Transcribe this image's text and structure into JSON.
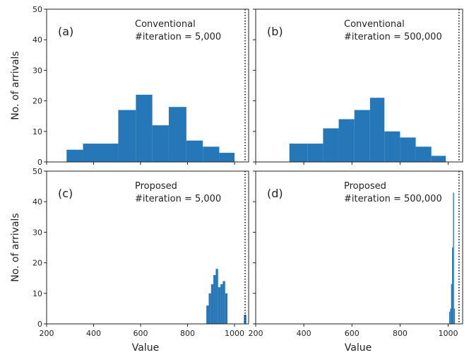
{
  "figure": {
    "ylabel": "No. of arrivals",
    "xlabel": "Value",
    "bar_color": "#2677b8",
    "reference_line": {
      "x": 1045,
      "style": "dotted",
      "color": "#111111"
    }
  },
  "chart_data": [
    {
      "type": "bar",
      "panel": "(a)",
      "annotation": [
        "Conventional",
        "#iteration = 5,000"
      ],
      "xlim": [
        200,
        1060
      ],
      "ylim": [
        0,
        50
      ],
      "xticks": [
        "200",
        "400",
        "600",
        "800",
        "1000"
      ],
      "yticks": [
        "0",
        "10",
        "20",
        "30",
        "40",
        "50"
      ],
      "ylabel": "No. of arrivals",
      "bins": [
        {
          "x0": 285,
          "x1": 355,
          "y": 4
        },
        {
          "x0": 355,
          "x1": 430,
          "y": 6
        },
        {
          "x0": 430,
          "x1": 505,
          "y": 6
        },
        {
          "x0": 505,
          "x1": 580,
          "y": 17
        },
        {
          "x0": 580,
          "x1": 650,
          "y": 22
        },
        {
          "x0": 650,
          "x1": 720,
          "y": 12
        },
        {
          "x0": 720,
          "x1": 795,
          "y": 18
        },
        {
          "x0": 795,
          "x1": 865,
          "y": 7
        },
        {
          "x0": 865,
          "x1": 935,
          "y": 5
        },
        {
          "x0": 935,
          "x1": 1000,
          "y": 3
        }
      ]
    },
    {
      "type": "bar",
      "panel": "(b)",
      "annotation": [
        "Conventional",
        "#iteration = 500,000"
      ],
      "xlim": [
        200,
        1060
      ],
      "ylim": [
        0,
        50
      ],
      "xticks": [
        "200",
        "400",
        "600",
        "800",
        "1000"
      ],
      "yticks": [],
      "bins": [
        {
          "x0": 340,
          "x1": 415,
          "y": 6
        },
        {
          "x0": 415,
          "x1": 480,
          "y": 6
        },
        {
          "x0": 480,
          "x1": 545,
          "y": 11
        },
        {
          "x0": 545,
          "x1": 610,
          "y": 14
        },
        {
          "x0": 610,
          "x1": 675,
          "y": 17
        },
        {
          "x0": 675,
          "x1": 735,
          "y": 21
        },
        {
          "x0": 735,
          "x1": 800,
          "y": 10
        },
        {
          "x0": 800,
          "x1": 865,
          "y": 8
        },
        {
          "x0": 865,
          "x1": 930,
          "y": 5
        },
        {
          "x0": 930,
          "x1": 990,
          "y": 2
        }
      ]
    },
    {
      "type": "bar",
      "panel": "(c)",
      "annotation": [
        "Proposed",
        "#iteration = 5,000"
      ],
      "xlim": [
        200,
        1060
      ],
      "ylim": [
        0,
        50
      ],
      "xticks": [
        "200",
        "400",
        "600",
        "800",
        "1000"
      ],
      "yticks": [
        "0",
        "10",
        "20",
        "30",
        "40",
        "50"
      ],
      "ylabel": "No. of arrivals",
      "xlabel": "Value",
      "bins": [
        {
          "x0": 880,
          "x1": 890,
          "y": 6
        },
        {
          "x0": 890,
          "x1": 900,
          "y": 10
        },
        {
          "x0": 900,
          "x1": 910,
          "y": 13
        },
        {
          "x0": 910,
          "x1": 920,
          "y": 16
        },
        {
          "x0": 920,
          "x1": 930,
          "y": 18
        },
        {
          "x0": 930,
          "x1": 940,
          "y": 12
        },
        {
          "x0": 940,
          "x1": 950,
          "y": 13
        },
        {
          "x0": 950,
          "x1": 960,
          "y": 14
        },
        {
          "x0": 960,
          "x1": 970,
          "y": 10
        },
        {
          "x0": 1040,
          "x1": 1050,
          "y": 3
        }
      ]
    },
    {
      "type": "bar",
      "panel": "(d)",
      "annotation": [
        "Proposed",
        "#iteration = 500,000"
      ],
      "xlim": [
        200,
        1060
      ],
      "ylim": [
        0,
        50
      ],
      "xticks": [
        "200",
        "400",
        "600",
        "800",
        "1000"
      ],
      "yticks": [],
      "xlabel": "Value",
      "bins": [
        {
          "x0": 1004,
          "x1": 1008,
          "y": 4
        },
        {
          "x0": 1008,
          "x1": 1012,
          "y": 5
        },
        {
          "x0": 1012,
          "x1": 1016,
          "y": 13
        },
        {
          "x0": 1016,
          "x1": 1020,
          "y": 25
        },
        {
          "x0": 1020,
          "x1": 1024,
          "y": 43
        },
        {
          "x0": 1024,
          "x1": 1028,
          "y": 5
        }
      ]
    }
  ]
}
